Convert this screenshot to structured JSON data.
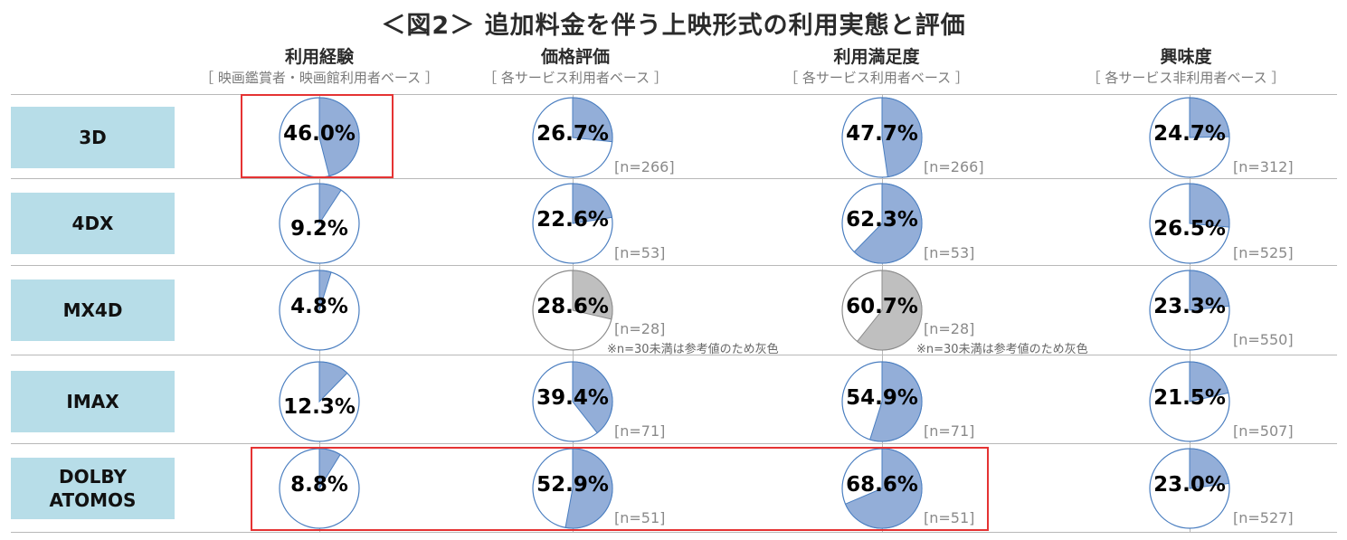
{
  "title": "＜図2＞ 追加料金を伴う上映形式の利用実態と評価",
  "colors": {
    "filled": "#93aed8",
    "grey": "#bfbfbf",
    "stroke": "#4a7ec0",
    "label_bg": "#b7dde8",
    "highlight": "#e53333"
  },
  "columns": [
    {
      "title": "利用経験",
      "subtitle": "［ 映画鑑賞者・映画館利用者ベース ］"
    },
    {
      "title": "価格評価",
      "subtitle": "［ 各サービス利用者ベース ］"
    },
    {
      "title": "利用満足度",
      "subtitle": "［ 各サービス利用者ベース ］"
    },
    {
      "title": "興味度",
      "subtitle": "［ 各サービス非利用者ベース ］"
    }
  ],
  "notes": {
    "grey_note": "※n=30未満は参考値のため灰色"
  },
  "chart_data": {
    "type": "pie",
    "title": "＜図2＞ 追加料金を伴う上映形式の利用実態と評価",
    "rows": [
      "3D",
      "4DX",
      "MX4D",
      "IMAX",
      "DOLBY\nATOMOS"
    ],
    "columns": [
      "利用経験",
      "価格評価",
      "利用満足度",
      "興味度"
    ],
    "values": [
      [
        46.0,
        26.7,
        47.7,
        24.7
      ],
      [
        9.2,
        22.6,
        62.3,
        26.5
      ],
      [
        4.8,
        28.6,
        60.7,
        23.3
      ],
      [
        12.3,
        39.4,
        54.9,
        21.5
      ],
      [
        8.8,
        52.9,
        68.6,
        23.0
      ]
    ],
    "labels": [
      [
        "46.0%",
        "26.7%",
        "47.7%",
        "24.7%"
      ],
      [
        "9.2%",
        "22.6%",
        "62.3%",
        "26.5%"
      ],
      [
        "4.8%",
        "28.6%",
        "60.7%",
        "23.3%"
      ],
      [
        "12.3%",
        "39.4%",
        "54.9%",
        "21.5%"
      ],
      [
        "8.8%",
        "52.9%",
        "68.6%",
        "23.0%"
      ]
    ],
    "n_labels": [
      [
        null,
        "[n=266]",
        "[n=266]",
        "[n=312]"
      ],
      [
        null,
        "[n=53]",
        "[n=53]",
        "[n=525]"
      ],
      [
        null,
        "[n=28]",
        "[n=28]",
        "[n=550]"
      ],
      [
        null,
        "[n=71]",
        "[n=71]",
        "[n=507]"
      ],
      [
        null,
        "[n=51]",
        "[n=51]",
        "[n=527]"
      ]
    ],
    "grey": [
      [
        false,
        false,
        false,
        false
      ],
      [
        false,
        false,
        false,
        false
      ],
      [
        false,
        true,
        true,
        false
      ],
      [
        false,
        false,
        false,
        false
      ],
      [
        false,
        false,
        false,
        false
      ]
    ],
    "highlights": [
      {
        "row": 0,
        "from_col": 0,
        "to_col": 0
      },
      {
        "row": 4,
        "from_col": 0,
        "to_col": 2
      }
    ]
  }
}
